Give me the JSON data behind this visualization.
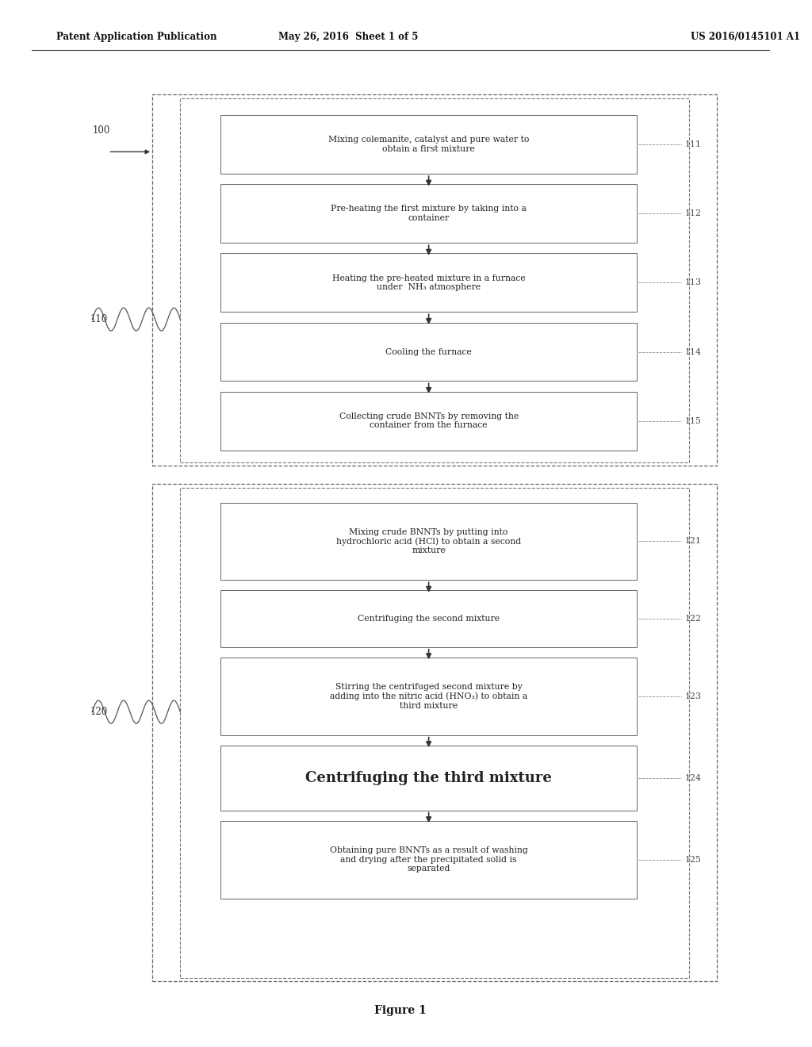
{
  "bg_color": "#ffffff",
  "header_left": "Patent Application Publication",
  "header_mid": "May 26, 2016  Sheet 1 of 5",
  "header_right": "US 2016/0145101 A1",
  "figure_caption": "Figure 1",
  "steps_group1": [
    {
      "id": "111",
      "text": "Mixing colemanite, catalyst and pure water to\nobtain a first mixture",
      "bold": false
    },
    {
      "id": "112",
      "text": "Pre-heating the first mixture by taking into a\ncontainer",
      "bold": false
    },
    {
      "id": "113",
      "text": "Heating the pre-heated mixture in a furnace\nunder  NH₃ atmosphere",
      "bold": false
    },
    {
      "id": "114",
      "text": "Cooling the furnace",
      "bold": false
    },
    {
      "id": "115",
      "text": "Collecting crude BNNTs by removing the\ncontainer from the furnace",
      "bold": false
    }
  ],
  "steps_group2": [
    {
      "id": "121",
      "text": "Mixing crude BNNTs by putting into\nhydrochloric acid (HCl) to obtain a second\nmixture",
      "bold": false
    },
    {
      "id": "122",
      "text": "Centrifuging the second mixture",
      "bold": false
    },
    {
      "id": "123",
      "text": "Stirring the centrifuged second mixture by\nadding into the nitric acid (HNO₃) to obtain a\nthird mixture",
      "bold": false
    },
    {
      "id": "124",
      "text": "Centrifuging the third mixture",
      "bold": true
    },
    {
      "id": "125",
      "text": "Obtaining pure BNNTs as a result of washing\nand drying after the precipitated solid is\nseparated",
      "bold": false
    }
  ]
}
